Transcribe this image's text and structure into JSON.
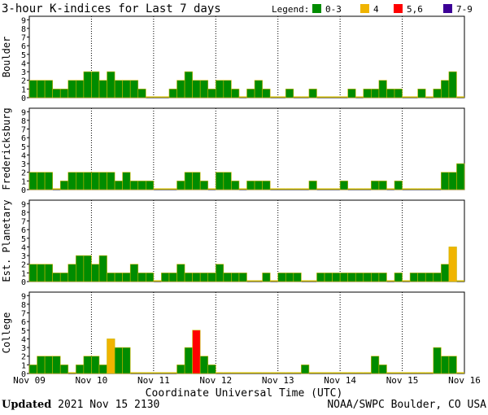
{
  "header": {
    "title": "3-hour K-indices for Last 7 days",
    "legend_label": "Legend:",
    "legend": [
      {
        "label": "0-3",
        "color": "#008c00"
      },
      {
        "label": "4",
        "color": "#f0b400"
      },
      {
        "label": "5,6",
        "color": "#ff0000"
      },
      {
        "label": "7-9",
        "color": "#3c0096"
      }
    ]
  },
  "footer": {
    "updated_label": "Updated",
    "updated_value": "2021 Nov 15 2130",
    "source": "NOAA/SWPC Boulder, CO USA"
  },
  "chart_data": {
    "type": "bar",
    "title": "3-hour K-indices for Last 7 days",
    "xlabel": "Coordinate Universal Time (UTC)",
    "x_tick_labels": [
      "Nov 09",
      "Nov 10",
      "Nov 11",
      "Nov 12",
      "Nov 13",
      "Nov 14",
      "Nov 15",
      "Nov 16"
    ],
    "ylim": [
      0,
      9
    ],
    "y_ticks": [
      "0",
      "1",
      "2",
      "3",
      "4",
      "5",
      "6",
      "7",
      "8",
      "9"
    ],
    "bins_per_day": 8,
    "color_thresholds": [
      {
        "range": "0-3",
        "color": "#008c00"
      },
      {
        "range": "4",
        "color": "#f0b400"
      },
      {
        "range": "5,6",
        "color": "#ff0000"
      },
      {
        "range": "7-9",
        "color": "#3c0096"
      }
    ],
    "series": [
      {
        "name": "Boulder",
        "values": [
          2,
          2,
          2,
          1,
          1,
          2,
          2,
          3,
          3,
          2,
          3,
          2,
          2,
          2,
          1,
          0,
          0,
          0,
          1,
          2,
          3,
          2,
          2,
          1,
          2,
          2,
          1,
          0,
          1,
          2,
          1,
          0,
          0,
          1,
          0,
          0,
          1,
          0,
          0,
          0,
          0,
          1,
          0,
          1,
          1,
          2,
          1,
          1,
          0,
          0,
          1,
          0,
          1,
          2,
          3,
          0
        ]
      },
      {
        "name": "Fredericksburg",
        "values": [
          2,
          2,
          2,
          0,
          1,
          2,
          2,
          2,
          2,
          2,
          2,
          1,
          2,
          1,
          1,
          1,
          0,
          0,
          0,
          1,
          2,
          2,
          1,
          0,
          2,
          2,
          1,
          0,
          1,
          1,
          1,
          0,
          0,
          0,
          0,
          0,
          1,
          0,
          0,
          0,
          1,
          0,
          0,
          0,
          1,
          1,
          0,
          1,
          0,
          0,
          0,
          0,
          0,
          2,
          2,
          3
        ]
      },
      {
        "name": "Est. Planetary",
        "values": [
          2,
          2,
          2,
          1,
          1,
          2,
          3,
          3,
          2,
          3,
          1,
          1,
          1,
          2,
          1,
          1,
          0,
          1,
          1,
          2,
          1,
          1,
          1,
          1,
          2,
          1,
          1,
          1,
          0,
          0,
          1,
          0,
          1,
          1,
          1,
          0,
          0,
          1,
          1,
          1,
          1,
          1,
          1,
          1,
          1,
          1,
          0,
          1,
          0,
          1,
          1,
          1,
          1,
          2,
          4,
          0
        ]
      },
      {
        "name": "College",
        "values": [
          1,
          2,
          2,
          2,
          1,
          0,
          1,
          2,
          2,
          1,
          4,
          3,
          3,
          0,
          0,
          0,
          0,
          0,
          0,
          1,
          3,
          5,
          2,
          1,
          0,
          0,
          0,
          0,
          0,
          0,
          0,
          0,
          0,
          0,
          0,
          1,
          0,
          0,
          0,
          0,
          0,
          0,
          0,
          0,
          2,
          1,
          0,
          0,
          0,
          0,
          0,
          0,
          3,
          2,
          2,
          0
        ]
      }
    ]
  }
}
